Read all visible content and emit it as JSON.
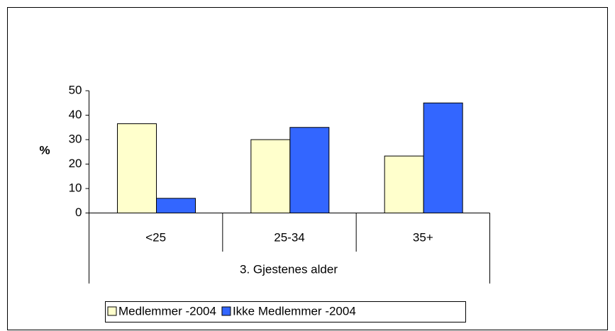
{
  "chart_data": {
    "type": "bar",
    "categories": [
      "<25",
      "25-34",
      "35+"
    ],
    "series": [
      {
        "name": "Medlemmer -2004",
        "color": "#ffffcc",
        "values": [
          36.5,
          30,
          23.3
        ]
      },
      {
        "name": "Ikke Medlemmer -2004",
        "color": "#3366ff",
        "values": [
          6,
          35,
          45
        ]
      }
    ],
    "x_label": "3. Gjestenes alder",
    "y_label": "%",
    "ylim": [
      0,
      50
    ],
    "yticks": [
      0,
      10,
      20,
      30,
      40,
      50
    ],
    "legend": "bottom"
  }
}
